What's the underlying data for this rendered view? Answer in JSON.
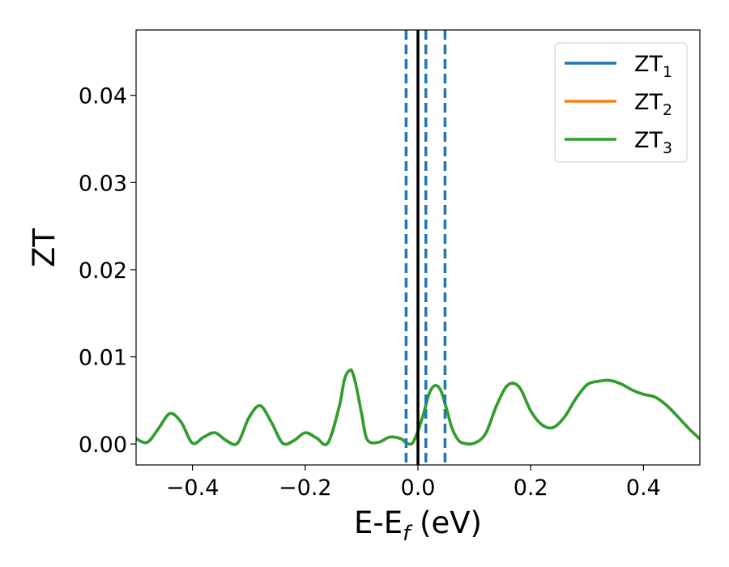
{
  "chart_data": {
    "type": "line",
    "xlabel": "E-E",
    "xlabel_sub": "f",
    "xlabel_unit": "(eV)",
    "ylabel": "ZT",
    "xlim": [
      -0.5,
      0.5
    ],
    "ylim": [
      -0.0024,
      0.0475
    ],
    "xticks": [
      -0.4,
      -0.2,
      0.0,
      0.2,
      0.4
    ],
    "xtick_labels": [
      "−0.4",
      "−0.2",
      "0.0",
      "0.2",
      "0.4"
    ],
    "yticks": [
      0.0,
      0.01,
      0.02,
      0.03,
      0.04
    ],
    "ytick_labels": [
      "0.00",
      "0.01",
      "0.02",
      "0.03",
      "0.04"
    ],
    "grid": false,
    "legend_position": "top-right",
    "series": [
      {
        "name": "ZT",
        "name_sub": "1",
        "color": "#1f77b4",
        "x": [
          -0.5,
          -0.48,
          -0.46,
          -0.44,
          -0.42,
          -0.4,
          -0.38,
          -0.36,
          -0.34,
          -0.32,
          -0.3,
          -0.28,
          -0.26,
          -0.24,
          -0.22,
          -0.2,
          -0.18,
          -0.16,
          -0.14,
          -0.13,
          -0.12,
          -0.115,
          -0.11,
          -0.1,
          -0.09,
          -0.07,
          -0.05,
          -0.03,
          -0.02,
          -0.01,
          0.0,
          0.01,
          0.02,
          0.03,
          0.04,
          0.05,
          0.06,
          0.07,
          0.08,
          0.1,
          0.12,
          0.14,
          0.16,
          0.18,
          0.2,
          0.22,
          0.24,
          0.26,
          0.28,
          0.3,
          0.32,
          0.34,
          0.36,
          0.38,
          0.4,
          0.42,
          0.44,
          0.46,
          0.48,
          0.5
        ],
        "y": [
          0.0006,
          0.0002,
          0.0018,
          0.0035,
          0.0025,
          0.0001,
          0.0008,
          0.0013,
          0.0004,
          0.0001,
          0.003,
          0.0044,
          0.0025,
          0.0001,
          0.0004,
          0.0013,
          0.0007,
          0.0001,
          0.0042,
          0.0075,
          0.0085,
          0.008,
          0.0068,
          0.0035,
          0.0005,
          0.0002,
          0.0008,
          0.0006,
          0.0001,
          0.0001,
          0.0015,
          0.0035,
          0.0058,
          0.0067,
          0.0062,
          0.0042,
          0.0019,
          0.0006,
          0.0001,
          0.0001,
          0.0012,
          0.0045,
          0.0068,
          0.0065,
          0.0038,
          0.0022,
          0.0019,
          0.0031,
          0.0052,
          0.0068,
          0.0072,
          0.0073,
          0.0069,
          0.0062,
          0.0057,
          0.0054,
          0.0045,
          0.0032,
          0.0018,
          0.0006
        ]
      },
      {
        "name": "ZT",
        "name_sub": "2",
        "color": "#ff7f0e",
        "x": [
          -0.5,
          -0.48,
          -0.46,
          -0.44,
          -0.42,
          -0.4,
          -0.38,
          -0.36,
          -0.34,
          -0.32,
          -0.3,
          -0.28,
          -0.26,
          -0.24,
          -0.22,
          -0.2,
          -0.18,
          -0.16,
          -0.14,
          -0.13,
          -0.12,
          -0.115,
          -0.11,
          -0.1,
          -0.09,
          -0.07,
          -0.05,
          -0.03,
          -0.02,
          -0.01,
          0.0,
          0.01,
          0.02,
          0.03,
          0.04,
          0.05,
          0.06,
          0.07,
          0.08,
          0.1,
          0.12,
          0.14,
          0.16,
          0.18,
          0.2,
          0.22,
          0.24,
          0.26,
          0.28,
          0.3,
          0.32,
          0.34,
          0.36,
          0.38,
          0.4,
          0.42,
          0.44,
          0.46,
          0.48,
          0.5
        ],
        "y": [
          0.0006,
          0.0002,
          0.0018,
          0.0035,
          0.0025,
          0.0001,
          0.0008,
          0.0013,
          0.0004,
          0.0001,
          0.003,
          0.0044,
          0.0025,
          0.0001,
          0.0004,
          0.0013,
          0.0007,
          0.0001,
          0.0042,
          0.0075,
          0.0085,
          0.008,
          0.0068,
          0.0035,
          0.0005,
          0.0002,
          0.0008,
          0.0006,
          0.0001,
          0.0001,
          0.0015,
          0.0035,
          0.0058,
          0.0067,
          0.0062,
          0.0042,
          0.0019,
          0.0006,
          0.0001,
          0.0001,
          0.0012,
          0.0045,
          0.0068,
          0.0065,
          0.0038,
          0.0022,
          0.0019,
          0.0031,
          0.0052,
          0.0068,
          0.0072,
          0.0073,
          0.0069,
          0.0062,
          0.0057,
          0.0054,
          0.0045,
          0.0032,
          0.0018,
          0.0006
        ]
      },
      {
        "name": "ZT",
        "name_sub": "3",
        "color": "#2ca02c",
        "x": [
          -0.5,
          -0.48,
          -0.46,
          -0.44,
          -0.42,
          -0.4,
          -0.38,
          -0.36,
          -0.34,
          -0.32,
          -0.3,
          -0.28,
          -0.26,
          -0.24,
          -0.22,
          -0.2,
          -0.18,
          -0.16,
          -0.14,
          -0.13,
          -0.12,
          -0.115,
          -0.11,
          -0.1,
          -0.09,
          -0.07,
          -0.05,
          -0.03,
          -0.02,
          -0.01,
          0.0,
          0.01,
          0.02,
          0.03,
          0.04,
          0.05,
          0.06,
          0.07,
          0.08,
          0.1,
          0.12,
          0.14,
          0.16,
          0.18,
          0.2,
          0.22,
          0.24,
          0.26,
          0.28,
          0.3,
          0.32,
          0.34,
          0.36,
          0.38,
          0.4,
          0.42,
          0.44,
          0.46,
          0.48,
          0.5
        ],
        "y": [
          0.0006,
          0.0002,
          0.0018,
          0.0035,
          0.0025,
          0.0001,
          0.0008,
          0.0013,
          0.0004,
          0.0001,
          0.003,
          0.0044,
          0.0025,
          0.0001,
          0.0004,
          0.0013,
          0.0007,
          0.0001,
          0.0042,
          0.0075,
          0.0085,
          0.008,
          0.0068,
          0.0035,
          0.0005,
          0.0002,
          0.0008,
          0.0006,
          0.0001,
          0.0001,
          0.0015,
          0.0035,
          0.0058,
          0.0067,
          0.0062,
          0.0042,
          0.0019,
          0.0006,
          0.0001,
          0.0001,
          0.0012,
          0.0045,
          0.0068,
          0.0065,
          0.0038,
          0.0022,
          0.0019,
          0.0031,
          0.0052,
          0.0068,
          0.0072,
          0.0073,
          0.0069,
          0.0062,
          0.0057,
          0.0054,
          0.0045,
          0.0032,
          0.0018,
          0.0006
        ]
      }
    ],
    "vlines": [
      {
        "x": 0.0,
        "style": "solid",
        "color": "#000000"
      },
      {
        "x": -0.021,
        "style": "dashed",
        "color": "#1f77b4"
      },
      {
        "x": 0.014,
        "style": "dashed",
        "color": "#1f77b4"
      },
      {
        "x": 0.048,
        "style": "dashed",
        "color": "#1f77b4"
      }
    ]
  }
}
